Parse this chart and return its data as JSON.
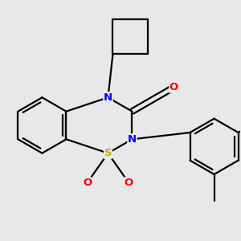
{
  "background_color": "#e8e8e8",
  "bond_color": "#000000",
  "line_width": 1.6,
  "atom_colors": {
    "N": "#0000ff",
    "S": "#ccaa00",
    "O": "#ff0000",
    "C": "#000000"
  },
  "font_size": 9.5,
  "figsize": [
    3.0,
    3.0
  ],
  "dpi": 100
}
